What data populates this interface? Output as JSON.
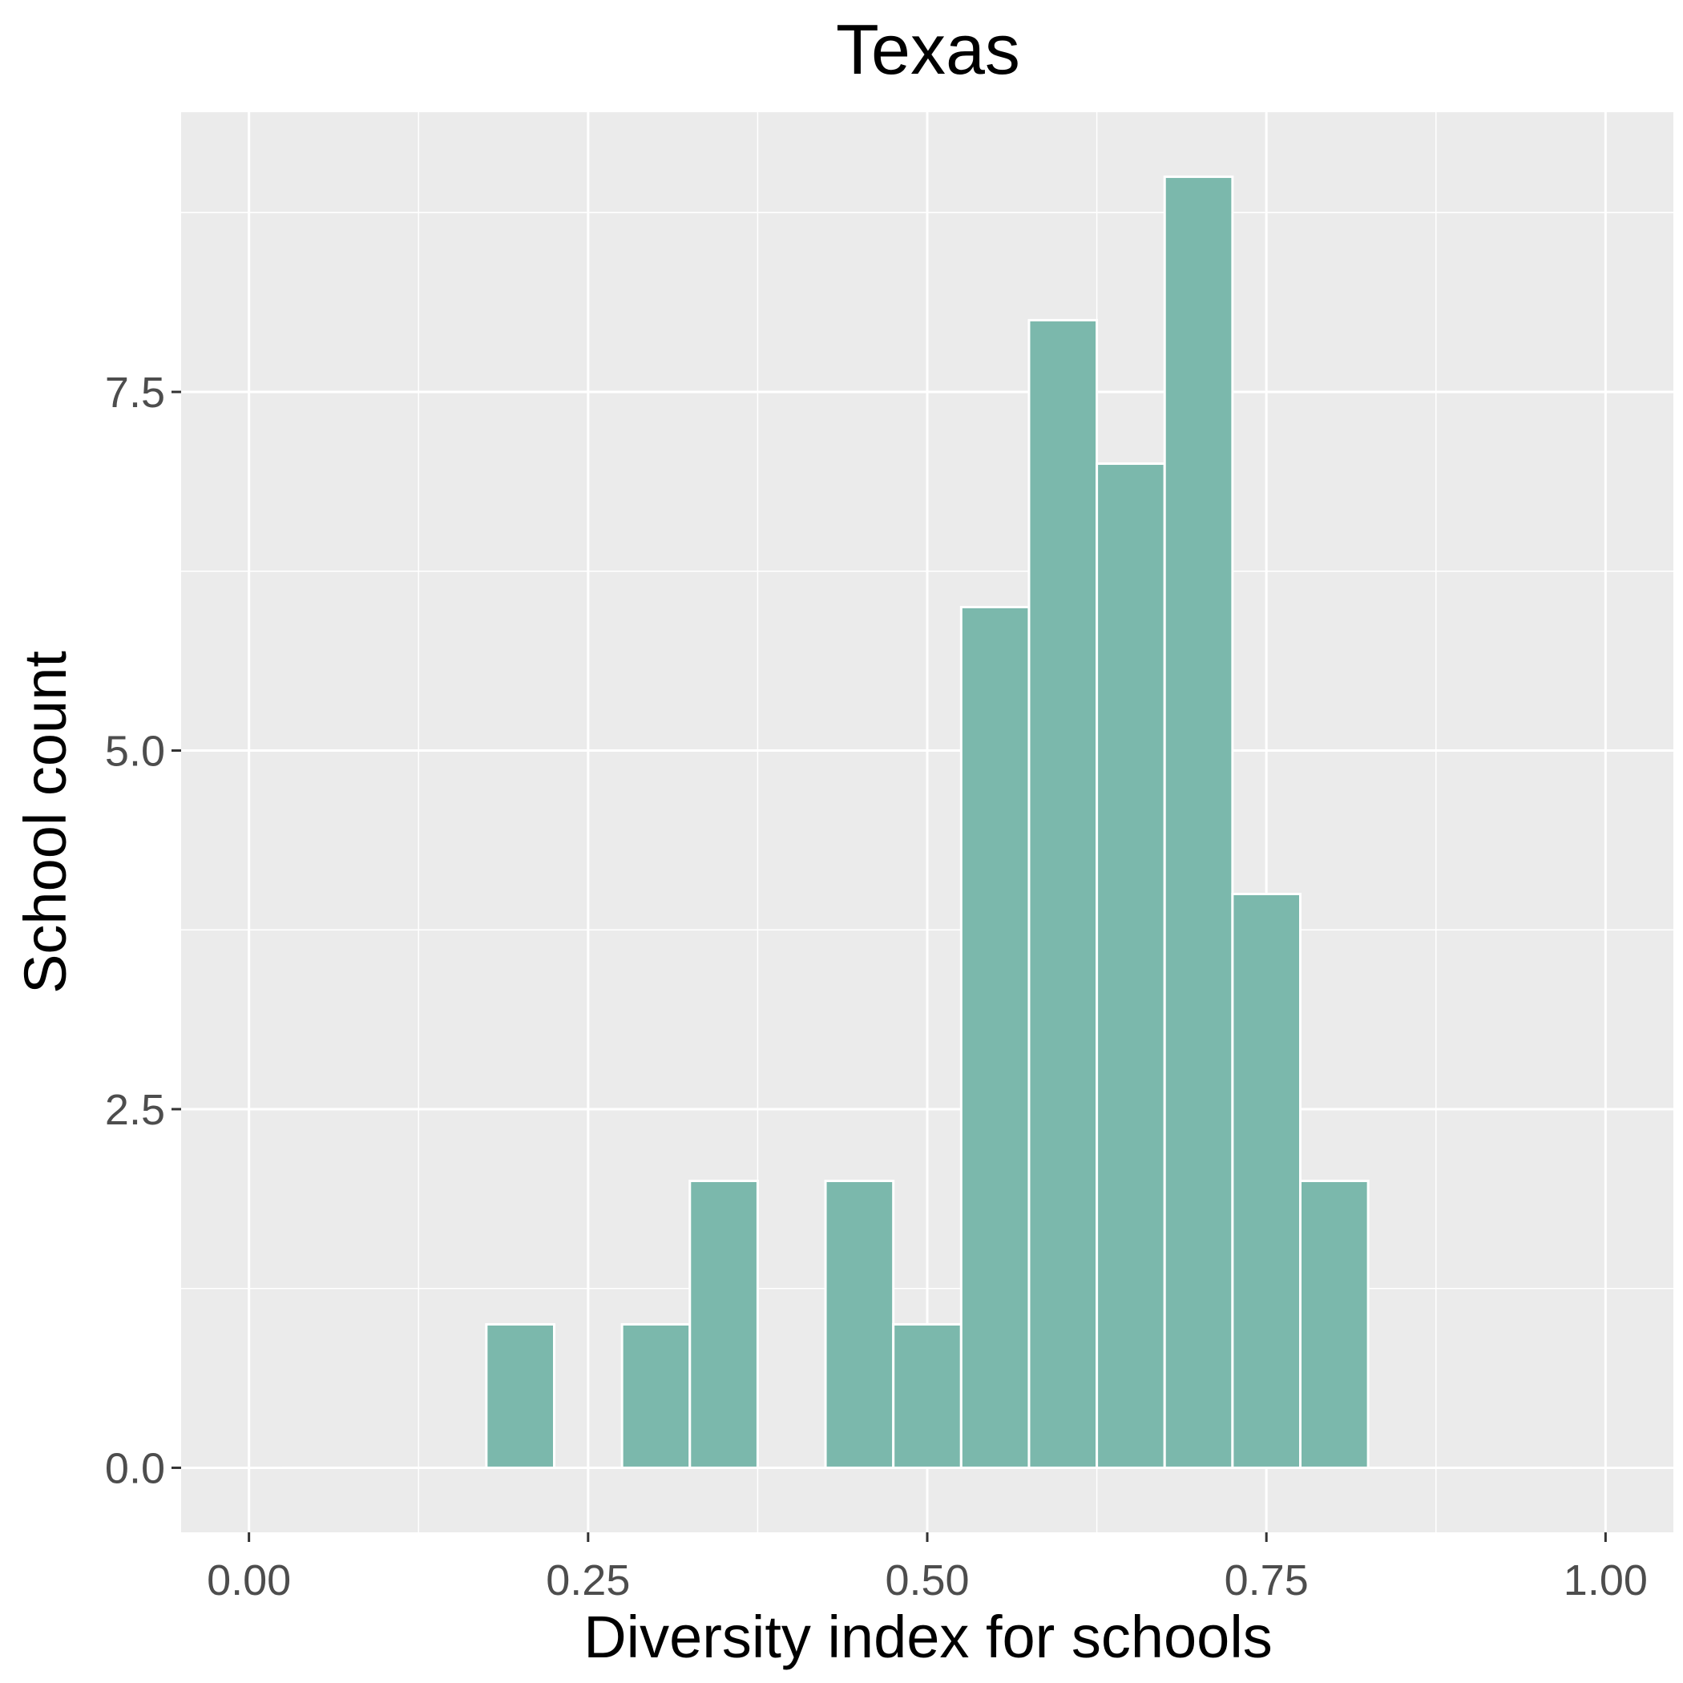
{
  "chart_data": {
    "type": "bar",
    "title": "Texas",
    "xlabel": "Diversity index for schools",
    "ylabel": "School count",
    "bin_width": 0.05,
    "bins": [
      {
        "x": 0.05,
        "count": 0
      },
      {
        "x": 0.1,
        "count": 0
      },
      {
        "x": 0.15,
        "count": 0
      },
      {
        "x": 0.2,
        "count": 1
      },
      {
        "x": 0.25,
        "count": 0
      },
      {
        "x": 0.3,
        "count": 1
      },
      {
        "x": 0.35,
        "count": 2
      },
      {
        "x": 0.4,
        "count": 0
      },
      {
        "x": 0.45,
        "count": 2
      },
      {
        "x": 0.5,
        "count": 1
      },
      {
        "x": 0.55,
        "count": 6
      },
      {
        "x": 0.6,
        "count": 8
      },
      {
        "x": 0.65,
        "count": 7
      },
      {
        "x": 0.7,
        "count": 9
      },
      {
        "x": 0.75,
        "count": 4
      },
      {
        "x": 0.8,
        "count": 2
      },
      {
        "x": 0.85,
        "count": 0
      },
      {
        "x": 0.9,
        "count": 0
      },
      {
        "x": 0.95,
        "count": 0
      }
    ],
    "xlim": [
      -0.05,
      1.05
    ],
    "ylim": [
      -0.45,
      9.45
    ],
    "x_ticks": [
      {
        "value": 0.0,
        "label": "0.00"
      },
      {
        "value": 0.25,
        "label": "0.25"
      },
      {
        "value": 0.5,
        "label": "0.50"
      },
      {
        "value": 0.75,
        "label": "0.75"
      },
      {
        "value": 1.0,
        "label": "1.00"
      }
    ],
    "y_ticks": [
      {
        "value": 0.0,
        "label": "0.0"
      },
      {
        "value": 2.5,
        "label": "2.5"
      },
      {
        "value": 5.0,
        "label": "5.0"
      },
      {
        "value": 7.5,
        "label": "7.5"
      }
    ],
    "grid": true,
    "legend": "none",
    "colors": {
      "bar_fill": "#7bb8ac",
      "bar_stroke": "#ffffff",
      "panel": "#ebebeb",
      "grid": "#ffffff",
      "tick_text": "#4d4d4d"
    }
  }
}
